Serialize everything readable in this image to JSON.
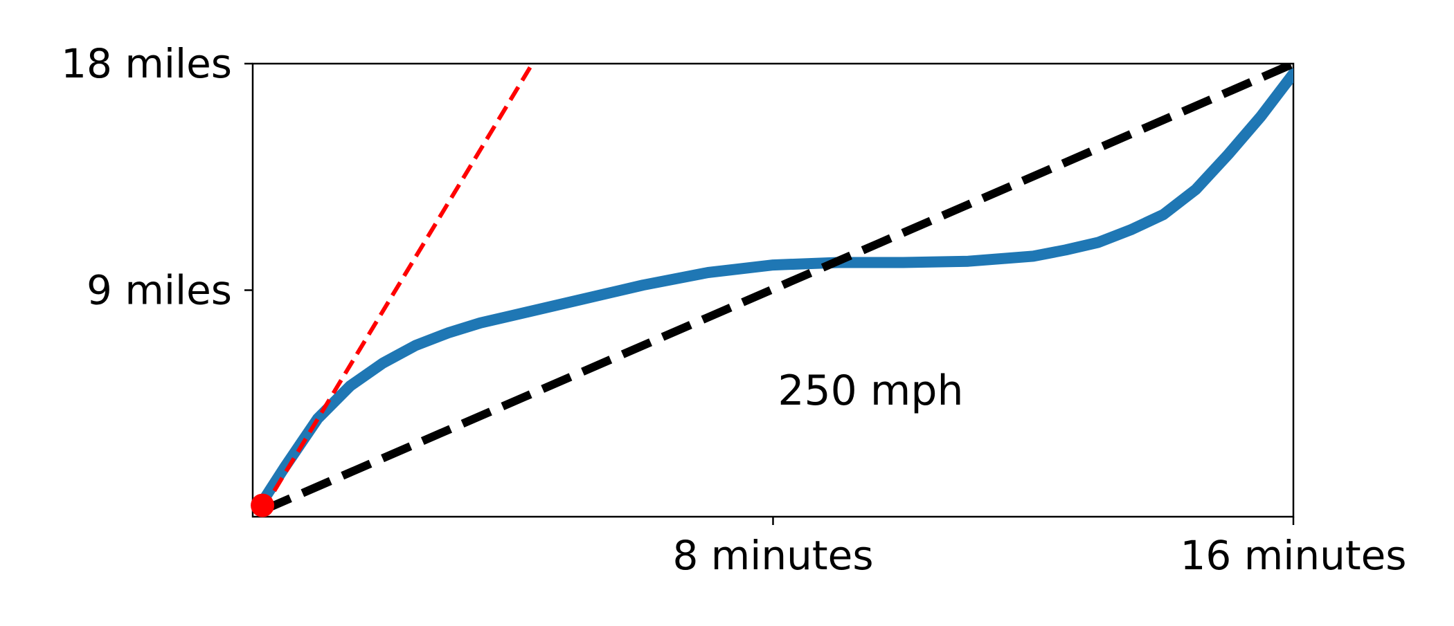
{
  "chart_data": {
    "type": "line",
    "title": "",
    "xlabel": "",
    "ylabel": "",
    "xlim": [
      0,
      16
    ],
    "ylim": [
      0,
      18
    ],
    "x_ticks": [
      {
        "value": 8,
        "label": "8 minutes"
      },
      {
        "value": 16,
        "label": "16 minutes"
      }
    ],
    "y_ticks": [
      {
        "value": 9,
        "label": "9 miles"
      },
      {
        "value": 18,
        "label": "18 miles"
      }
    ],
    "grid": false,
    "series": [
      {
        "color": "#1f77b4",
        "style": "solid",
        "x": [
          0.15,
          0.5,
          1.0,
          1.5,
          2.0,
          2.5,
          3.0,
          3.5,
          4.0,
          5.0,
          6.0,
          7.0,
          8.0,
          9.0,
          10.0,
          11.0,
          12.0,
          12.5,
          13.0,
          13.5,
          14.0,
          14.5,
          15.0,
          15.5,
          16.0
        ],
        "y": [
          0.6,
          2.0,
          3.9,
          5.2,
          6.1,
          6.8,
          7.3,
          7.7,
          8.0,
          8.6,
          9.2,
          9.7,
          10.0,
          10.1,
          10.1,
          10.15,
          10.35,
          10.6,
          10.9,
          11.4,
          12.0,
          13.0,
          14.4,
          15.9,
          17.6
        ]
      },
      {
        "color": "#000000",
        "style": "dashed",
        "x": [
          0.15,
          16
        ],
        "y": [
          0.25,
          18
        ]
      },
      {
        "color": "#ff0000",
        "style": "dashed",
        "x": [
          0.15,
          4.3
        ],
        "y": [
          0.25,
          18
        ]
      }
    ],
    "points": [
      {
        "x": 0.15,
        "y": 0.45,
        "color": "#ff0000"
      }
    ],
    "annotations": [
      {
        "text": "250 mph",
        "x": 9.5,
        "y": 5.0
      }
    ]
  }
}
